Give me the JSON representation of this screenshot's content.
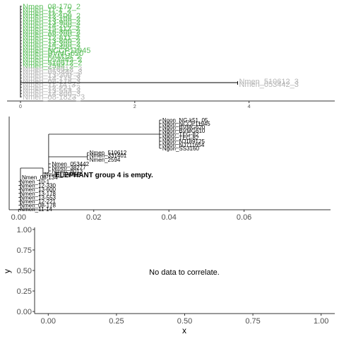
{
  "chart_data": [
    {
      "type": "tree",
      "xlim": [
        0,
        5.5
      ],
      "x_ticks": [
        0,
        2,
        4
      ],
      "tip_labels_green": [
        "Nmen_08-170_2",
        "Nmen_11-1_2",
        "Nmen_11-2_2",
        "Nmen_12-100_2",
        "Nmen_13-106_2",
        "Nmen_13-900_2",
        "Nmen_14-200_2",
        "Nmen_15-112_2",
        "Nmen_16-300_2",
        "Nmen_08-700_2",
        "Nmen_12-811_2",
        "Nmen_13-800_2",
        "Nmen_14-300_2",
        "Nmen_15-400_2",
        "Nmen_NCCP11945",
        "Nmen_BVMG620",
        "Nmen_FAM18_2",
        "Nmen_053442_2",
        "Nmen_510612_2",
        "Nmen_2594_2"
      ],
      "tip_labels_gray": [
        "Nmen_510612_3",
        "Nmen_053442_3",
        "Nmen_13-300_3",
        "Nmen_14-175_3",
        "Nmen_08-178_3",
        "Nmen_11-14_3",
        "Nmen_12-221_3",
        "Nmen_13-553_3",
        "Nmen_14-800_3",
        "Nmen_08-1823_3"
      ],
      "outlier_labels": [
        "Nmen_510612_3",
        "Nmen_053442_3"
      ],
      "outlier_x": 3.8
    },
    {
      "type": "tree",
      "xlim": [
        -0.0025,
        0.083
      ],
      "x_ticks": [
        "0.00",
        "0.02",
        "0.04",
        "0.06"
      ],
      "x_tick_values": [
        0,
        0.02,
        0.04,
        0.06
      ],
      "message": "ELEPHANT group 4 is empty.",
      "gono_tips": [
        "Ngon_NG-k51_05",
        "Ngon_NCCP11945",
        "Ngon_BVMG620",
        "Ngon_BVMG610",
        "Ngon_TEG-82",
        "Ngon_TEG-82",
        "Ngon_NJ189125",
        "Ngon_NJ711654",
        "Ngon_SS3160"
      ],
      "gono_x": 0.0375,
      "mid_tips": [
        {
          "label": "Nmen_510612",
          "x": 0.0185
        },
        {
          "label": "Nmen_331401",
          "x": 0.0185
        },
        {
          "label": "Nmen_2594",
          "x": 0.0185
        },
        {
          "label": "Nmen_053442",
          "x": 0.0085
        },
        {
          "label": "Nmen_38277",
          "x": 0.0085
        },
        {
          "label": "Nmen_8013",
          "x": 0.0085
        },
        {
          "label": "Nmen_FAM18",
          "x": 0.0065
        },
        {
          "label": "Nmen_08-134",
          "x": 0.0005
        }
      ],
      "low_tips": [
        "Nmen_10-1",
        "Nmen_12-330",
        "Nmen_13-600",
        "Nmen_13-178",
        "Nmen_13-553",
        "Nmen_12-221",
        "Nmen_08-178",
        "Nmen_11-14"
      ]
    },
    {
      "type": "scatter",
      "xlabel": "x",
      "ylabel": "y",
      "xlim": [
        -0.05,
        1.05
      ],
      "ylim": [
        -0.025,
        1.025
      ],
      "x_ticks": [
        "0.00",
        "0.25",
        "0.50",
        "0.75",
        "1.00"
      ],
      "x_tick_values": [
        0,
        0.25,
        0.5,
        0.75,
        1
      ],
      "y_ticks": [
        "0.00",
        "0.25",
        "0.50",
        "0.75",
        "1.00"
      ],
      "y_tick_values": [
        0,
        0.25,
        0.5,
        0.75,
        1
      ],
      "message": "No data to correlate.",
      "points": []
    }
  ],
  "colors": {
    "green": "#5bbf5b",
    "gray": "#b5b5b5",
    "axis": "#333333",
    "line": "#000000",
    "tick_text": "#4d4d4d"
  }
}
